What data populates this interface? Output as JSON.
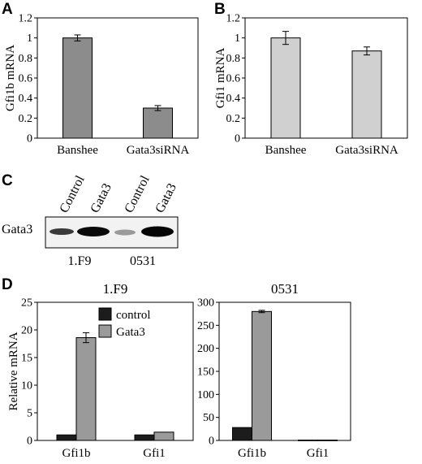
{
  "panels": {
    "a": "A",
    "b": "B",
    "c": "C",
    "d": "D"
  },
  "colors": {
    "panelA_bar": "#8c8c8c",
    "panelB_bar": "#d0d0d0",
    "control": "#1c1c1c",
    "gata3": "#9a9a9a"
  },
  "chart_data": [
    {
      "id": "A",
      "type": "bar",
      "title": "",
      "xlabel": "",
      "ylabel": "Gfi1b mRNA",
      "categories": [
        "Banshee",
        "Gata3siRNA"
      ],
      "values": [
        1.0,
        0.3
      ],
      "errors": [
        0.03,
        0.025
      ],
      "ylim": [
        0,
        1.2
      ],
      "yticks": [
        "0",
        "0.2",
        "0.4",
        "0.6",
        "0.8",
        "1",
        "1.2"
      ],
      "grid": false
    },
    {
      "id": "B",
      "type": "bar",
      "title": "",
      "xlabel": "",
      "ylabel": "Gfi1 mRNA",
      "categories": [
        "Banshee",
        "Gata3siRNA"
      ],
      "values": [
        1.0,
        0.87
      ],
      "errors": [
        0.065,
        0.04
      ],
      "ylim": [
        0,
        1.2
      ],
      "yticks": [
        "0",
        "0.2",
        "0.4",
        "0.6",
        "0.8",
        "1",
        "1.2"
      ],
      "grid": false
    },
    {
      "id": "D1",
      "type": "bar",
      "title": "1.F9",
      "xlabel": "",
      "ylabel": "Relative mRNA",
      "categories": [
        "Gfi1b",
        "Gfi1"
      ],
      "series": [
        {
          "name": "control",
          "values": [
            1.0,
            1.0
          ],
          "errors": [
            0,
            0
          ]
        },
        {
          "name": "Gata3",
          "values": [
            18.6,
            1.5
          ],
          "errors": [
            0.9,
            0
          ]
        }
      ],
      "ylim": [
        0,
        25
      ],
      "yticks": [
        "0",
        "5",
        "10",
        "15",
        "20",
        "25"
      ],
      "legend": "top-left",
      "grid": false
    },
    {
      "id": "D2",
      "type": "bar",
      "title": "0531",
      "xlabel": "",
      "ylabel": "",
      "categories": [
        "Gfi1b",
        "Gfi1"
      ],
      "series": [
        {
          "name": "control",
          "values": [
            28,
            0.8
          ],
          "errors": [
            0,
            0
          ]
        },
        {
          "name": "Gata3",
          "values": [
            280,
            0.8
          ],
          "errors": [
            2.5,
            0
          ]
        }
      ],
      "ylim": [
        0,
        300
      ],
      "yticks": [
        "0",
        "50",
        "100",
        "150",
        "200",
        "250",
        "300"
      ],
      "grid": false
    }
  ],
  "blot": {
    "lanes": [
      "Control",
      "Gata3",
      "Control",
      "Gata3"
    ],
    "row_label": "Gata3",
    "cell_lines": [
      "1.F9",
      "0531"
    ]
  }
}
